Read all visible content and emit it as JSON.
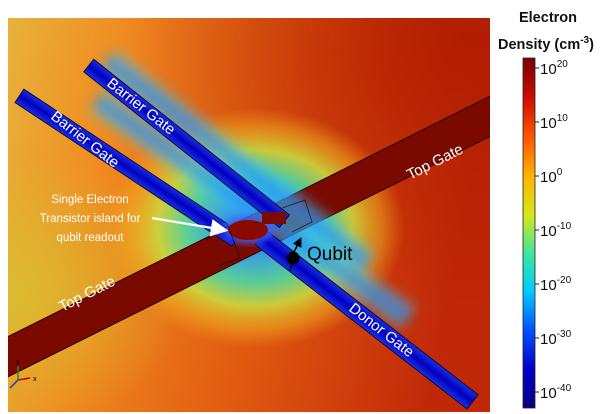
{
  "colorbar": {
    "title_line1": "Electron",
    "title_line2": "Density (cm",
    "title_exp": "-3",
    "title_close": ")",
    "ticks": [
      {
        "base": "10",
        "exp": "20"
      },
      {
        "base": "10",
        "exp": "10"
      },
      {
        "base": "10",
        "exp": "0"
      },
      {
        "base": "10",
        "exp": "-10"
      },
      {
        "base": "10",
        "exp": "-20"
      },
      {
        "base": "10",
        "exp": "-30"
      },
      {
        "base": "10",
        "exp": "-40"
      }
    ],
    "colors": [
      "#0a0080",
      "#0000c8",
      "#0050ff",
      "#00c8ff",
      "#3ce6a0",
      "#d4e81a",
      "#ffb400",
      "#ff5a00",
      "#d01000",
      "#7a0000"
    ]
  },
  "labels": {
    "barrier_gate_upper": "Barrier Gate",
    "barrier_gate_lower": "Barrier Gate",
    "top_gate_right": "Top Gate",
    "top_gate_left": "Top Gate",
    "donor_gate": "Donor Gate",
    "qubit": "Qubit"
  },
  "annotation": {
    "line1": "Single Electron",
    "line2": "Transistor island for",
    "line3": "qubit readout"
  },
  "axes_triad": {
    "x": "x",
    "y": "y",
    "z": "z"
  }
}
